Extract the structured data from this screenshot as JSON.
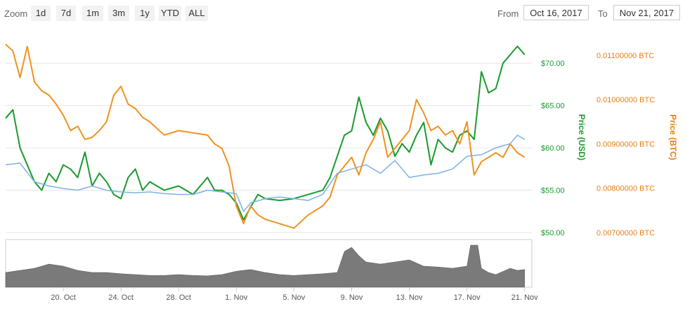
{
  "toolbar": {
    "zoom_label": "Zoom",
    "zoom_buttons": [
      "1d",
      "7d",
      "1m",
      "3m",
      "1y",
      "YTD",
      "ALL"
    ],
    "from_label": "From",
    "from_value": "Oct 16, 2017",
    "to_label": "To",
    "to_value": "Nov 21, 2017"
  },
  "colors": {
    "usd": "#1a9a2e",
    "btc": "#f0921e",
    "btc_usd_line": "#7cb1e6",
    "volume": "#7a7a7a",
    "usd_axis_text": "#1a9a2e",
    "btc_axis_text": "#e87f0e"
  },
  "chart_data": {
    "type": "line",
    "title": "",
    "x_range": [
      "2017-10-16",
      "2017-11-21"
    ],
    "x_ticks": [
      "20. Oct",
      "24. Oct",
      "28. Oct",
      "1. Nov",
      "5. Nov",
      "9. Nov",
      "13. Nov",
      "17. Nov",
      "21. Nov"
    ],
    "y_usd": {
      "label": "Price (USD)",
      "ticks": [
        "$50.00",
        "$55.00",
        "$60.00",
        "$65.00",
        "$70.00"
      ],
      "range": [
        50,
        72.5
      ]
    },
    "y_btc": {
      "label": "Price (BTC)",
      "ticks": [
        "0.00700000 BTC",
        "0.00800000 BTC",
        "0.00900000 BTC",
        "0.01000000 BTC",
        "0.01100000 BTC"
      ],
      "range": [
        0.007,
        0.0113
      ]
    },
    "grid": true,
    "series": [
      {
        "key": "usd",
        "axis": "usd",
        "x": [
          "2017-10-16",
          "2017-10-16 12:00",
          "2017-10-17",
          "2017-10-17 12:00",
          "2017-10-18",
          "2017-10-18 12:00",
          "2017-10-19",
          "2017-10-19 12:00",
          "2017-10-20",
          "2017-10-20 12:00",
          "2017-10-21",
          "2017-10-21 12:00",
          "2017-10-22",
          "2017-10-22 12:00",
          "2017-10-23",
          "2017-10-23 12:00",
          "2017-10-24",
          "2017-10-24 12:00",
          "2017-10-25",
          "2017-10-25 12:00",
          "2017-10-26",
          "2017-10-27",
          "2017-10-28",
          "2017-10-29",
          "2017-10-30",
          "2017-10-30 12:00",
          "2017-10-31",
          "2017-10-31 12:00",
          "2017-11-01",
          "2017-11-01 12:00",
          "2017-11-02",
          "2017-11-02 12:00",
          "2017-11-03",
          "2017-11-04",
          "2017-11-05",
          "2017-11-06",
          "2017-11-07",
          "2017-11-07 12:00",
          "2017-11-08",
          "2017-11-08 12:00",
          "2017-11-09",
          "2017-11-09 12:00",
          "2017-11-10",
          "2017-11-10 12:00",
          "2017-11-11",
          "2017-11-11 12:00",
          "2017-11-12",
          "2017-11-12 12:00",
          "2017-11-13",
          "2017-11-13 12:00",
          "2017-11-14",
          "2017-11-14 12:00",
          "2017-11-15",
          "2017-11-15 12:00",
          "2017-11-16",
          "2017-11-16 12:00",
          "2017-11-17",
          "2017-11-17 12:00",
          "2017-11-18",
          "2017-11-18 12:00",
          "2017-11-19",
          "2017-11-19 12:00",
          "2017-11-20",
          "2017-11-20 12:00",
          "2017-11-21"
        ],
        "values": [
          63.5,
          64.5,
          60.0,
          58.0,
          56.0,
          55.0,
          57.0,
          56.0,
          58.0,
          57.5,
          56.5,
          59.5,
          55.5,
          57.0,
          56.0,
          54.5,
          54.0,
          56.5,
          57.5,
          55.0,
          56.0,
          55.0,
          55.5,
          54.5,
          56.5,
          55.0,
          55.0,
          54.5,
          53.5,
          51.5,
          53.0,
          54.5,
          54.0,
          53.8,
          54.0,
          54.5,
          55.0,
          56.5,
          59.0,
          61.5,
          62.0,
          66.0,
          63.0,
          61.5,
          63.5,
          62.0,
          59.0,
          60.5,
          59.5,
          61.5,
          63.0,
          58.0,
          61.0,
          60.0,
          59.5,
          61.5,
          62.0,
          61.0,
          69.0,
          66.5,
          67.0,
          70.0,
          71.0,
          72.0,
          71.0
        ]
      },
      {
        "key": "btc",
        "axis": "btc",
        "x": [
          "2017-10-16",
          "2017-10-16 12:00",
          "2017-10-17",
          "2017-10-17 12:00",
          "2017-10-18",
          "2017-10-18 12:00",
          "2017-10-19",
          "2017-10-19 12:00",
          "2017-10-20",
          "2017-10-20 12:00",
          "2017-10-21",
          "2017-10-21 12:00",
          "2017-10-22",
          "2017-10-22 12:00",
          "2017-10-23",
          "2017-10-23 12:00",
          "2017-10-24",
          "2017-10-24 12:00",
          "2017-10-25",
          "2017-10-25 12:00",
          "2017-10-26",
          "2017-10-27",
          "2017-10-28",
          "2017-10-29",
          "2017-10-30",
          "2017-10-30 12:00",
          "2017-10-31",
          "2017-10-31 12:00",
          "2017-11-01",
          "2017-11-01 12:00",
          "2017-11-02",
          "2017-11-02 12:00",
          "2017-11-03",
          "2017-11-04",
          "2017-11-05",
          "2017-11-06",
          "2017-11-07",
          "2017-11-07 12:00",
          "2017-11-08",
          "2017-11-08 12:00",
          "2017-11-09",
          "2017-11-09 12:00",
          "2017-11-10",
          "2017-11-10 12:00",
          "2017-11-11",
          "2017-11-11 12:00",
          "2017-11-12",
          "2017-11-12 12:00",
          "2017-11-13",
          "2017-11-13 12:00",
          "2017-11-14",
          "2017-11-14 12:00",
          "2017-11-15",
          "2017-11-15 12:00",
          "2017-11-16",
          "2017-11-16 12:00",
          "2017-11-17",
          "2017-11-17 12:00",
          "2017-11-18",
          "2017-11-18 12:00",
          "2017-11-19",
          "2017-11-19 12:00",
          "2017-11-20",
          "2017-11-20 12:00",
          "2017-11-21"
        ],
        "values": [
          0.01125,
          0.0111,
          0.0105,
          0.0112,
          0.0104,
          0.0102,
          0.0101,
          0.0099,
          0.00965,
          0.0093,
          0.0094,
          0.0091,
          0.00915,
          0.0093,
          0.0095,
          0.0101,
          0.0103,
          0.0099,
          0.0098,
          0.0096,
          0.0095,
          0.0092,
          0.0093,
          0.00925,
          0.0092,
          0.009,
          0.0089,
          0.0085,
          0.0076,
          0.0072,
          0.0076,
          0.0074,
          0.0073,
          0.0072,
          0.0071,
          0.0074,
          0.0076,
          0.0078,
          0.0083,
          0.0085,
          0.0087,
          0.0083,
          0.0088,
          0.0091,
          0.0095,
          0.0087,
          0.0089,
          0.0091,
          0.0093,
          0.01,
          0.0097,
          0.0093,
          0.0094,
          0.0092,
          0.0093,
          0.009,
          0.0095,
          0.0083,
          0.0086,
          0.0087,
          0.0088,
          0.0087,
          0.009,
          0.0088,
          0.0087
        ]
      },
      {
        "key": "btc_usd_line",
        "axis": "usd",
        "x": [
          "2017-10-16",
          "2017-10-17",
          "2017-10-18",
          "2017-10-19",
          "2017-10-20",
          "2017-10-21",
          "2017-10-22",
          "2017-10-23",
          "2017-10-24",
          "2017-10-25",
          "2017-10-26",
          "2017-10-27",
          "2017-10-28",
          "2017-10-29",
          "2017-10-30",
          "2017-10-31",
          "2017-11-01",
          "2017-11-01 12:00",
          "2017-11-02",
          "2017-11-03",
          "2017-11-04",
          "2017-11-05",
          "2017-11-06",
          "2017-11-07",
          "2017-11-08",
          "2017-11-09",
          "2017-11-10",
          "2017-11-11",
          "2017-11-12",
          "2017-11-13",
          "2017-11-14",
          "2017-11-15",
          "2017-11-16",
          "2017-11-17",
          "2017-11-18",
          "2017-11-19",
          "2017-11-20",
          "2017-11-20 12:00",
          "2017-11-21"
        ],
        "values": [
          58.0,
          58.2,
          56.0,
          55.5,
          55.2,
          55.0,
          55.5,
          55.0,
          54.8,
          54.7,
          54.8,
          54.6,
          54.5,
          54.5,
          55.0,
          54.8,
          54.6,
          52.5,
          53.5,
          54.0,
          54.2,
          54.0,
          53.8,
          54.5,
          57.0,
          57.5,
          58.0,
          57.0,
          58.5,
          56.5,
          56.8,
          57.0,
          57.5,
          59.0,
          59.2,
          60.0,
          60.5,
          61.5,
          61.0
        ]
      }
    ],
    "volume": {
      "x": [
        "2017-10-16",
        "2017-10-17",
        "2017-10-18",
        "2017-10-19",
        "2017-10-20",
        "2017-10-21",
        "2017-10-22",
        "2017-10-23",
        "2017-10-24",
        "2017-10-25",
        "2017-10-26",
        "2017-10-27",
        "2017-10-28",
        "2017-10-29",
        "2017-10-30",
        "2017-10-31",
        "2017-11-01",
        "2017-11-02",
        "2017-11-03",
        "2017-11-04",
        "2017-11-05",
        "2017-11-06",
        "2017-11-07",
        "2017-11-08",
        "2017-11-08 12:00",
        "2017-11-09",
        "2017-11-09 12:00",
        "2017-11-10",
        "2017-11-11",
        "2017-11-12",
        "2017-11-13",
        "2017-11-14",
        "2017-11-15",
        "2017-11-16",
        "2017-11-17",
        "2017-11-17 06:00",
        "2017-11-17 18:00",
        "2017-11-18",
        "2017-11-18 12:00",
        "2017-11-19",
        "2017-11-20",
        "2017-11-20 12:00",
        "2017-11-21"
      ],
      "values": [
        0.35,
        0.4,
        0.45,
        0.55,
        0.5,
        0.4,
        0.35,
        0.35,
        0.32,
        0.3,
        0.28,
        0.28,
        0.3,
        0.28,
        0.27,
        0.3,
        0.38,
        0.42,
        0.35,
        0.3,
        0.28,
        0.3,
        0.32,
        0.35,
        0.85,
        0.95,
        0.75,
        0.6,
        0.55,
        0.6,
        0.65,
        0.5,
        0.48,
        0.45,
        0.5,
        1.0,
        1.0,
        0.45,
        0.35,
        0.3,
        0.45,
        0.4,
        0.42
      ]
    }
  }
}
